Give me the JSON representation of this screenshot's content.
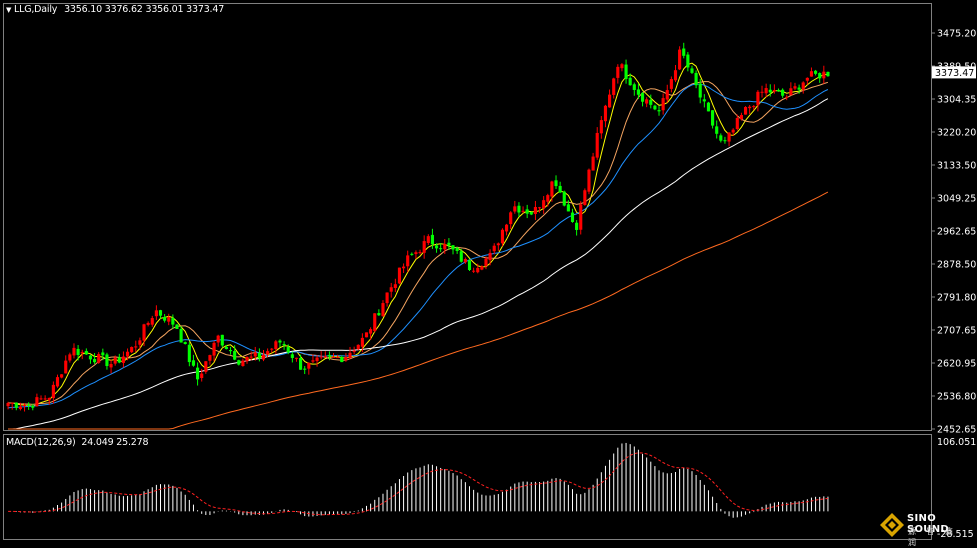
{
  "header": {
    "symbol": "LLG,Daily",
    "ohlc": "3356.10 3376.62 3356.01 3373.47"
  },
  "macd_header": {
    "label": "MACD(12,26,9)",
    "values": "24.049 25.278"
  },
  "watermark": {
    "brand": "SINO SOUND",
    "sub_glyphs": "源 智 鑫 润"
  },
  "colors": {
    "background": "#000000",
    "up_candle": "#ff0000",
    "down_candle": "#00ff00",
    "ma_fast": "#ffff00",
    "ma_mid": "#f4a460",
    "ma_slow_blue": "#1e90ff",
    "ma_white": "#ffffff",
    "ma_orange": "#ff6a20",
    "macd_hist": "#ffffff",
    "macd_signal": "#ff2020"
  },
  "chart_data": {
    "type": "candlestick",
    "y_axis_ticks": [
      "3475.20",
      "3389.50",
      "3304.35",
      "3220.20",
      "3133.50",
      "3049.25",
      "2962.65",
      "2878.50",
      "2791.80",
      "2707.65",
      "2620.95",
      "2536.80",
      "2452.65"
    ],
    "ylim": [
      2452.65,
      3475.2
    ],
    "current_price": "3373.47",
    "anchors": [
      2520,
      2515,
      2540,
      2660,
      2640,
      2620,
      2665,
      2760,
      2720,
      2580,
      2690,
      2630,
      2640,
      2680,
      2610,
      2630,
      2640,
      2690,
      2800,
      2890,
      2940,
      2920,
      2870,
      2900,
      3030,
      3010,
      3100,
      2970,
      3200,
      3400,
      3320,
      3270,
      3430,
      3300,
      3180,
      3270,
      3330,
      3310,
      3360,
      3373
    ],
    "moving_averages": [
      "MA5",
      "MA10",
      "MA20",
      "MA60",
      "MA120"
    ],
    "macd": {
      "macd_value": "24.049",
      "signal_value": "25.278",
      "scale_max": "106.051",
      "scale_min": "-28.515",
      "ylim": [
        -28.515,
        106.051
      ]
    }
  }
}
